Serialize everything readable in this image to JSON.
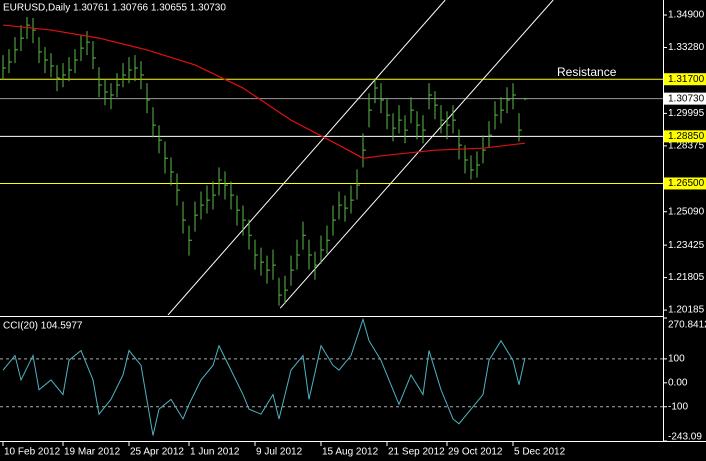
{
  "chart_data": {
    "type": "ohlc",
    "title": "EURUSD,Daily  1.30761 1.30766 1.30655 1.30730",
    "annotation": "Resistance",
    "ylim": [
      1.1994,
      1.3565
    ],
    "yticks": [
      {
        "value": 1.349,
        "label": "1.34900"
      },
      {
        "value": 1.3328,
        "label": "1.33280"
      },
      {
        "value": 1.29995,
        "label": "1.29995"
      },
      {
        "value": 1.28375,
        "label": "1.28375"
      },
      {
        "value": 1.2509,
        "label": "1.25090"
      },
      {
        "value": 1.23425,
        "label": "1.23425"
      },
      {
        "value": 1.21805,
        "label": "1.21805"
      },
      {
        "value": 1.20185,
        "label": "1.20185"
      }
    ],
    "xticks": [
      {
        "value": 0,
        "label": "10 Feb 2012"
      },
      {
        "value": 10,
        "label": "19 Mar 2012"
      },
      {
        "value": 21,
        "label": "25 Apr 2012"
      },
      {
        "value": 31,
        "label": "1 Jun 2012"
      },
      {
        "value": 42,
        "label": "9 Jul 2012"
      },
      {
        "value": 53,
        "label": "15 Aug 2012"
      },
      {
        "value": 64,
        "label": "21 Sep 2012"
      },
      {
        "value": 74,
        "label": "29 Oct 2012"
      },
      {
        "value": 85,
        "label": "5 Dec 2012"
      }
    ],
    "bars": {
      "color": "#5cb84a",
      "high": [
        1.329,
        1.332,
        1.338,
        1.344,
        1.348,
        1.3475,
        1.338,
        1.333,
        1.33,
        1.324,
        1.325,
        1.328,
        1.332,
        1.339,
        1.341,
        1.336,
        1.323,
        1.317,
        1.315,
        1.32,
        1.325,
        1.328,
        1.329,
        1.326,
        1.315,
        1.303,
        1.294,
        1.286,
        1.278,
        1.27,
        1.256,
        1.244,
        1.256,
        1.261,
        1.264,
        1.266,
        1.273,
        1.271,
        1.266,
        1.259,
        1.254,
        1.247,
        1.237,
        1.233,
        1.229,
        1.232,
        1.218,
        1.219,
        1.229,
        1.237,
        1.246,
        1.237,
        1.231,
        1.239,
        1.244,
        1.254,
        1.261,
        1.259,
        1.264,
        1.272,
        1.29,
        1.31,
        1.317,
        1.315,
        1.307,
        1.3,
        1.304,
        1.299,
        1.308,
        1.301,
        1.299,
        1.315,
        1.311,
        1.304,
        1.301,
        1.304,
        1.292,
        1.284,
        1.279,
        1.281,
        1.289,
        1.296,
        1.306,
        1.308,
        1.313,
        1.315,
        1.3,
        1.30766
      ],
      "low": [
        1.317,
        1.32,
        1.325,
        1.331,
        1.337,
        1.335,
        1.325,
        1.32,
        1.318,
        1.311,
        1.313,
        1.316,
        1.32,
        1.326,
        1.329,
        1.322,
        1.308,
        1.304,
        1.302,
        1.308,
        1.313,
        1.315,
        1.316,
        1.312,
        1.3,
        1.288,
        1.28,
        1.27,
        1.264,
        1.254,
        1.24,
        1.229,
        1.241,
        1.247,
        1.25,
        1.252,
        1.259,
        1.257,
        1.252,
        1.244,
        1.239,
        1.232,
        1.222,
        1.219,
        1.215,
        1.217,
        1.204,
        1.205,
        1.214,
        1.222,
        1.232,
        1.222,
        1.217,
        1.225,
        1.23,
        1.239,
        1.247,
        1.246,
        1.25,
        1.257,
        1.273,
        1.293,
        1.305,
        1.3,
        1.292,
        1.286,
        1.29,
        1.285,
        1.295,
        1.287,
        1.285,
        1.302,
        1.297,
        1.29,
        1.287,
        1.29,
        1.277,
        1.27,
        1.267,
        1.268,
        1.275,
        1.283,
        1.292,
        1.295,
        1.3,
        1.302,
        1.286,
        1.30655
      ],
      "close": [
        1.3226,
        1.3256,
        1.3316,
        1.3375,
        1.344,
        1.3415,
        1.3306,
        1.3266,
        1.3236,
        1.3176,
        1.3191,
        1.3216,
        1.3266,
        1.3325,
        1.3355,
        1.3276,
        1.3141,
        1.3106,
        1.3091,
        1.3141,
        1.3191,
        1.3216,
        1.3226,
        1.3191,
        1.3066,
        1.2941,
        1.2866,
        1.2776,
        1.2707,
        1.2617,
        1.2467,
        1.2367,
        1.2492,
        1.2542,
        1.2567,
        1.2592,
        1.2667,
        1.2642,
        1.2592,
        1.2517,
        1.2467,
        1.2392,
        1.2293,
        1.2258,
        1.2218,
        1.2243,
        1.2093,
        1.2118,
        1.2218,
        1.2293,
        1.2392,
        1.2293,
        1.2243,
        1.2318,
        1.2367,
        1.2467,
        1.2542,
        1.2527,
        1.2567,
        1.2642,
        1.2816,
        1.3016,
        1.3126,
        1.3066,
        1.2991,
        1.2926,
        1.2966,
        1.2916,
        1.3016,
        1.2941,
        1.2916,
        1.3091,
        1.3041,
        1.2966,
        1.2941,
        1.2966,
        1.2841,
        1.2767,
        1.2717,
        1.2742,
        1.2816,
        1.2891,
        1.2991,
        1.3016,
        1.3066,
        1.3091,
        1.2916,
        1.3073
      ]
    },
    "ma": {
      "color": "#e01010",
      "x": [
        0,
        8,
        16,
        24,
        32,
        40,
        48,
        56,
        60,
        64,
        72,
        80,
        87
      ],
      "values": [
        1.344,
        1.3415,
        1.3375,
        1.3316,
        1.3241,
        1.3126,
        1.2966,
        1.2841,
        1.2776,
        1.2791,
        1.2816,
        1.2826,
        1.2851
      ]
    },
    "trendlines": [
      {
        "x": [
          27.5,
          73.7
        ],
        "y": [
          1.1994,
          1.3565
        ]
      },
      {
        "x": [
          46.2,
          91.7
        ],
        "y": [
          1.2028,
          1.3565
        ]
      }
    ],
    "hlines": [
      {
        "value": 1.317,
        "label": "1.31700",
        "color": "#ffff00"
      },
      {
        "value": 1.2885,
        "label": "1.28850",
        "color": "#ffffff"
      },
      {
        "value": 1.265,
        "label": "1.26500",
        "color": "#ffff00"
      }
    ],
    "current": {
      "value": 1.3073,
      "label": "1.30730"
    },
    "cci": {
      "title": "CCI(20) 104.5977",
      "color": "#4fb3c4",
      "ylim": [
        -243.09,
        270.8412
      ],
      "yticks": [
        270.8412,
        100,
        {
          "value": 0,
          "label": "0.00"
        },
        -100,
        -243.09
      ],
      "levels": [
        100,
        -100
      ],
      "x": [
        0,
        2,
        3,
        5,
        6,
        8,
        10,
        11,
        13,
        15,
        16,
        18,
        20,
        21,
        23,
        25,
        26,
        28,
        30,
        31,
        33,
        35,
        36,
        38,
        40,
        41,
        43,
        45,
        46,
        48,
        50,
        51,
        53,
        55,
        56,
        58,
        60,
        61,
        63,
        65,
        66,
        68,
        70,
        71,
        73,
        75,
        76,
        78,
        80,
        81,
        83,
        85,
        86,
        87
      ],
      "values": [
        53,
        114,
        12,
        114,
        -29,
        12,
        -49,
        94,
        135,
        12,
        -131,
        -69,
        33,
        135,
        73,
        -220,
        -110,
        -69,
        -151,
        -90,
        12,
        73,
        155,
        53,
        -49,
        -110,
        -131,
        -49,
        -151,
        53,
        114,
        -69,
        155,
        73,
        53,
        114,
        265,
        176,
        94,
        -29,
        -90,
        33,
        -49,
        135,
        -29,
        -151,
        -171,
        -110,
        -49,
        94,
        176,
        94,
        -8,
        104.5977
      ]
    }
  }
}
